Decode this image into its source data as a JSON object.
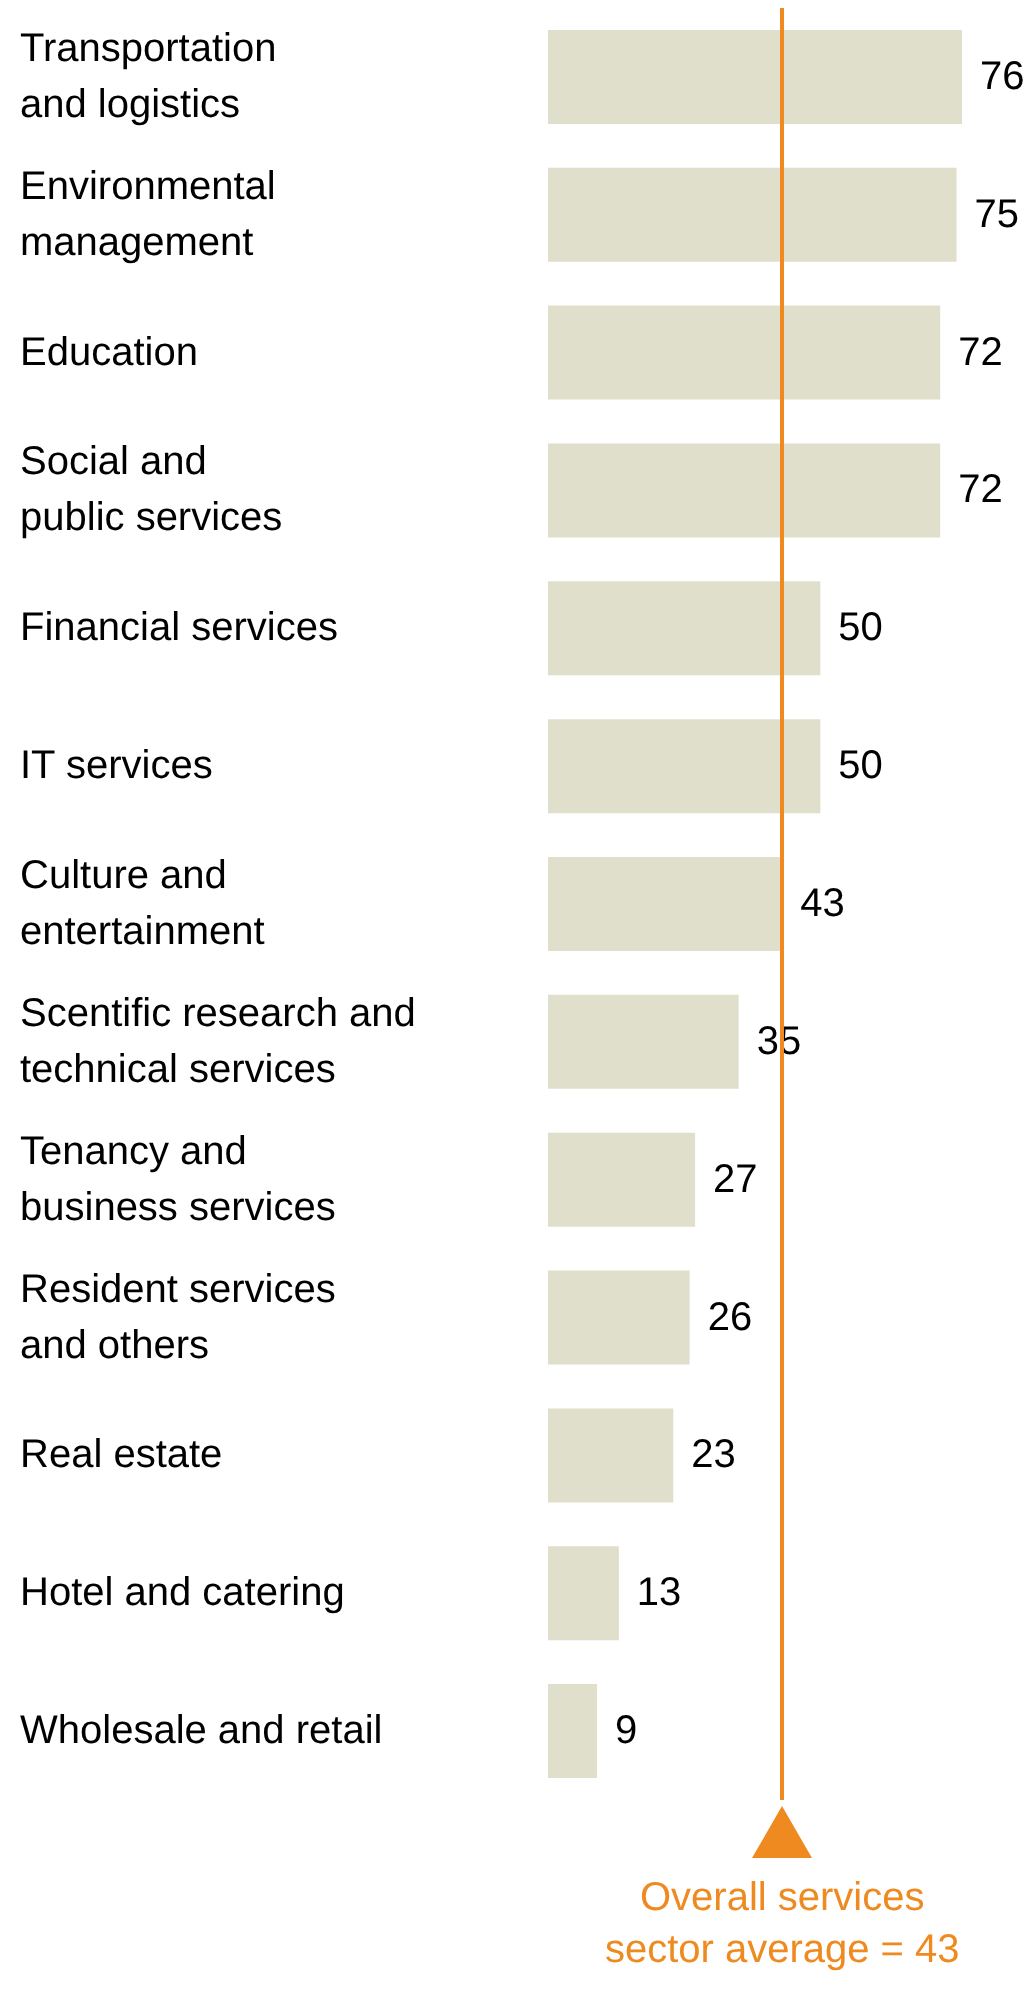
{
  "chart_data": {
    "type": "bar",
    "orientation": "horizontal",
    "categories": [
      "Transportation\nand logistics",
      "Environmental\nmanagement",
      "Education",
      "Social and\npublic services",
      "Financial services",
      "IT services",
      "Culture and\nentertainment",
      "Scentific research and\ntechnical services",
      "Tenancy and\nbusiness services",
      "Resident services\nand others",
      "Real estate",
      "Hotel and catering",
      "Wholesale and retail"
    ],
    "values": [
      76,
      75,
      72,
      72,
      50,
      50,
      43,
      35,
      27,
      26,
      23,
      13,
      9
    ],
    "color": "#e0dfcc",
    "data_labels": true,
    "grid": false,
    "ref_lines": [
      {
        "axis": "x",
        "value": 43,
        "label": "Overall services\nsector average = 43",
        "color": "#ee8a1f"
      }
    ]
  }
}
